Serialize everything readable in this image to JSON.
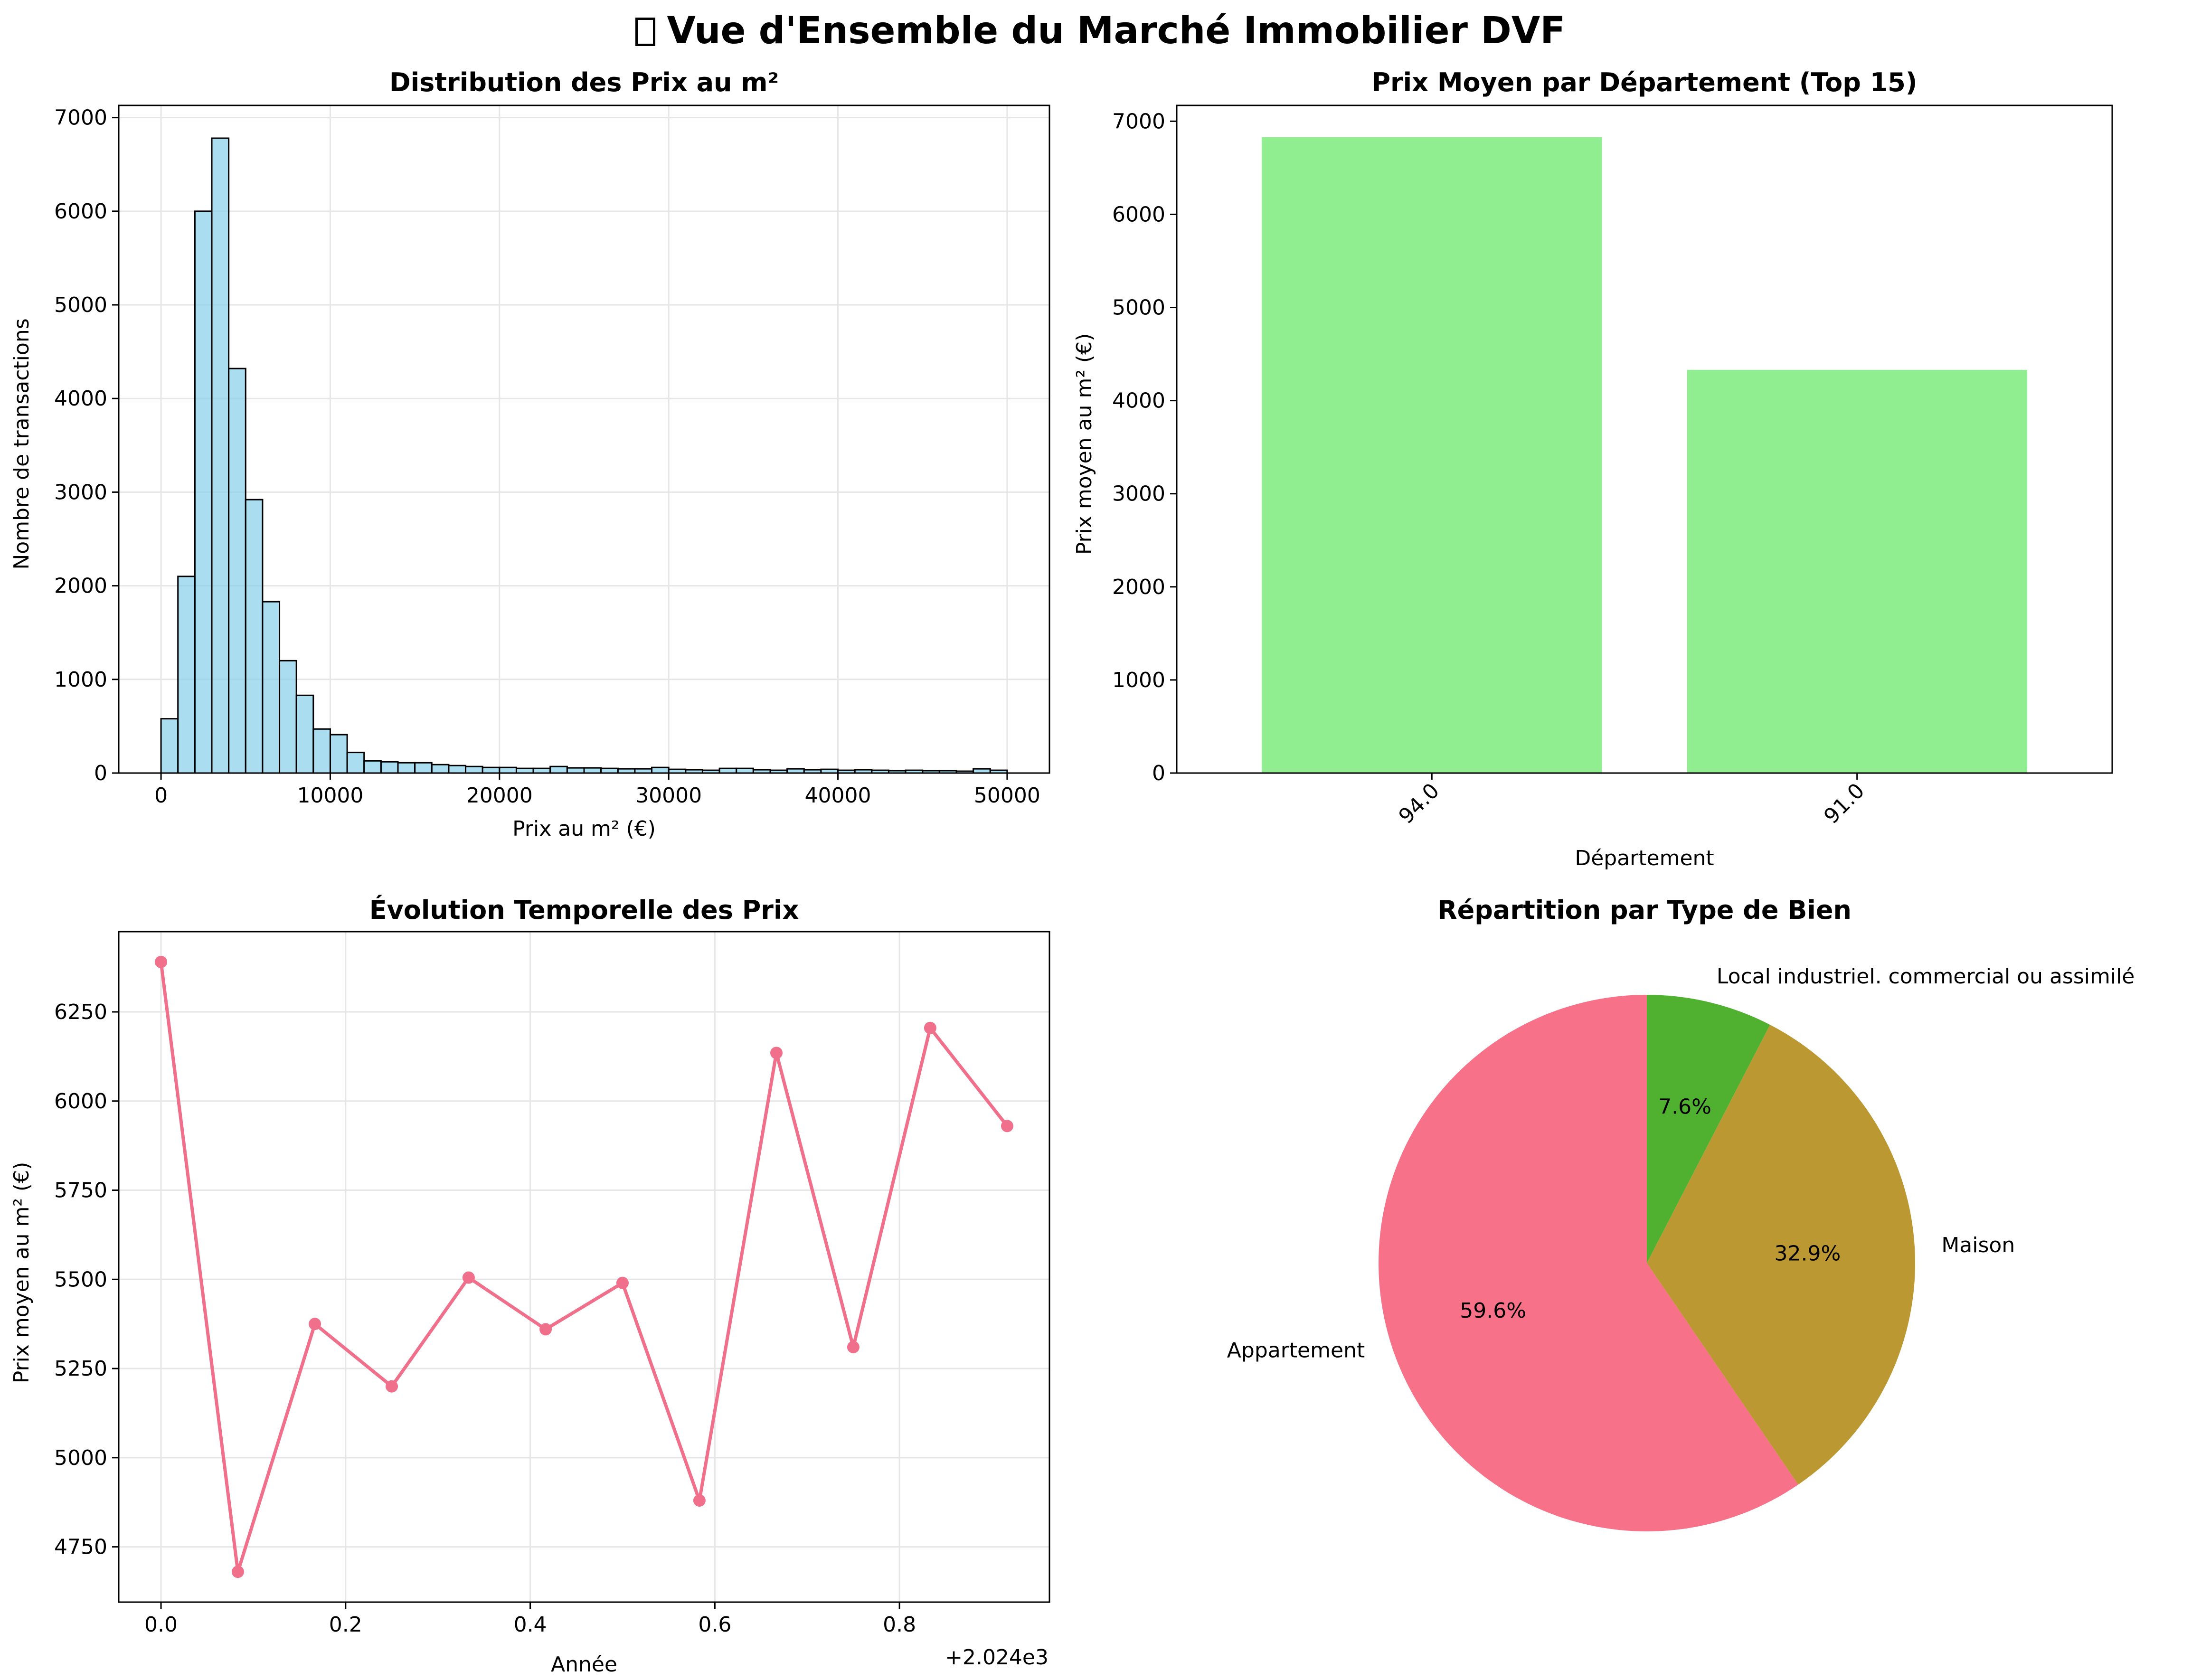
{
  "figure": {
    "title": "Vue d'Ensemble du Marché Immobilier DVF",
    "title_icon": "missing-glyph-box"
  },
  "chart_data": [
    {
      "id": "hist",
      "type": "bar",
      "subtype": "histogram",
      "title": "Distribution des Prix au m²",
      "xlabel": "Prix au m² (€)",
      "ylabel": "Nombre de transactions",
      "xlim": [
        -2500,
        52500
      ],
      "ylim": [
        0,
        7130
      ],
      "xticks": [
        0,
        10000,
        20000,
        30000,
        40000,
        50000
      ],
      "xtick_labels": [
        "0",
        "10000",
        "20000",
        "30000",
        "40000",
        "50000"
      ],
      "yticks": [
        0,
        1000,
        2000,
        3000,
        4000,
        5000,
        6000,
        7000
      ],
      "ytick_labels": [
        "0",
        "1000",
        "2000",
        "3000",
        "4000",
        "5000",
        "6000",
        "7000"
      ],
      "bin_start": 0,
      "bin_width": 1000,
      "values": [
        580,
        2100,
        6000,
        6780,
        4320,
        2920,
        1830,
        1200,
        830,
        470,
        410,
        220,
        130,
        120,
        110,
        110,
        90,
        80,
        70,
        60,
        60,
        50,
        50,
        70,
        55,
        55,
        50,
        45,
        45,
        60,
        40,
        35,
        30,
        50,
        50,
        35,
        30,
        45,
        35,
        40,
        30,
        35,
        30,
        25,
        30,
        25,
        25,
        20,
        45,
        30
      ],
      "color": "#87CEEB",
      "edgecolor": "#000000",
      "grid": true
    },
    {
      "id": "dept",
      "type": "bar",
      "title": "Prix Moyen par Département (Top 15)",
      "xlabel": "Département",
      "ylabel": "Prix moyen au m² (€)",
      "categories": [
        "94.0",
        "91.0"
      ],
      "values": [
        6830,
        4330
      ],
      "ylim": [
        0,
        7170
      ],
      "yticks": [
        0,
        1000,
        2000,
        3000,
        4000,
        5000,
        6000,
        7000
      ],
      "ytick_labels": [
        "0",
        "1000",
        "2000",
        "3000",
        "4000",
        "5000",
        "6000",
        "7000"
      ],
      "color": "#90EE90",
      "grid": false
    },
    {
      "id": "trend",
      "type": "line",
      "title": "Évolution Temporelle des Prix",
      "xlabel": "Année",
      "ylabel": "Prix moyen au m² (€)",
      "x_offset_label": "+2.024e3",
      "x": [
        2024.0,
        2024.0833,
        2024.1667,
        2024.25,
        2024.3333,
        2024.4167,
        2024.5,
        2024.5833,
        2024.6667,
        2024.75,
        2024.8333,
        2024.9167
      ],
      "y": [
        6390,
        4680,
        5375,
        5200,
        5505,
        5360,
        5490,
        4880,
        6135,
        5310,
        6205,
        5930
      ],
      "xlim": [
        2023.9542,
        2024.9625
      ],
      "ylim": [
        4595,
        6475
      ],
      "xticks": [
        2024.0,
        2024.2,
        2024.4,
        2024.6,
        2024.8
      ],
      "xtick_labels": [
        "0.0",
        "0.2",
        "0.4",
        "0.6",
        "0.8"
      ],
      "yticks": [
        4750,
        5000,
        5250,
        5500,
        5750,
        6000,
        6250
      ],
      "ytick_labels": [
        "4750",
        "5000",
        "5250",
        "5500",
        "5750",
        "6000",
        "6250"
      ],
      "color": "#F0708C",
      "marker": "circle",
      "grid": true
    },
    {
      "id": "pie",
      "type": "pie",
      "title": "Répartition par Type de Bien",
      "labels": [
        "Appartement",
        "Maison",
        "Local industriel. commercial ou assimilé"
      ],
      "values": [
        59.6,
        32.9,
        7.6
      ],
      "pct_labels": [
        "59.6%",
        "32.9%",
        "7.6%"
      ],
      "colors": [
        "#F77189",
        "#BB9832",
        "#50B131"
      ],
      "startangle": 90,
      "direction": "counterclockwise"
    }
  ]
}
